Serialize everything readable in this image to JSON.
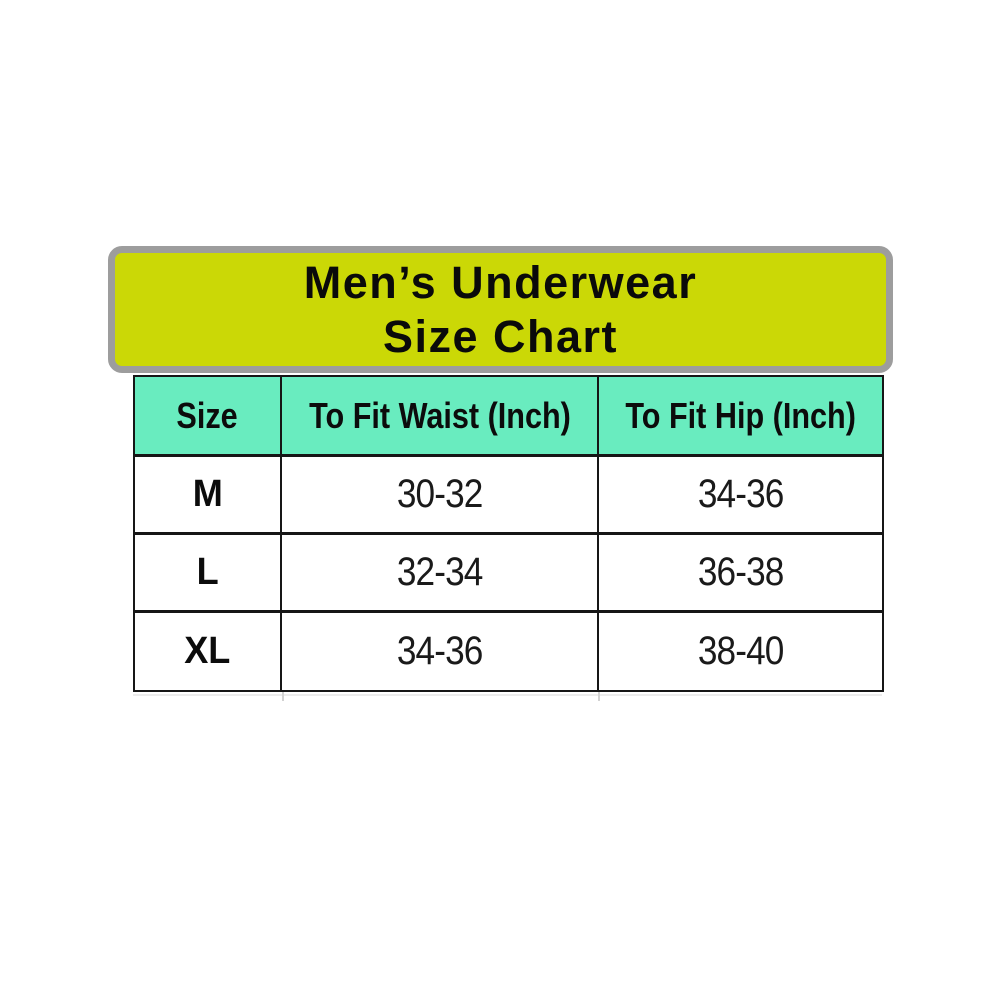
{
  "banner": {
    "title_line1": "Men’s Underwear",
    "title_line2": "Size Chart"
  },
  "table": {
    "columns": [
      "Size",
      "To Fit Waist (Inch)",
      "To Fit Hip (Inch)"
    ],
    "rows": [
      {
        "size": "M",
        "waist": "30-32",
        "hip": "34-36"
      },
      {
        "size": "L",
        "waist": "32-34",
        "hip": "36-38"
      },
      {
        "size": "XL",
        "waist": "34-36",
        "hip": "38-40"
      }
    ]
  },
  "colors": {
    "banner_bg": "#cbd806",
    "banner_border": "#9d9d9d",
    "header_bg": "#69ecbf",
    "table_border": "#161616",
    "text": "#111111"
  }
}
